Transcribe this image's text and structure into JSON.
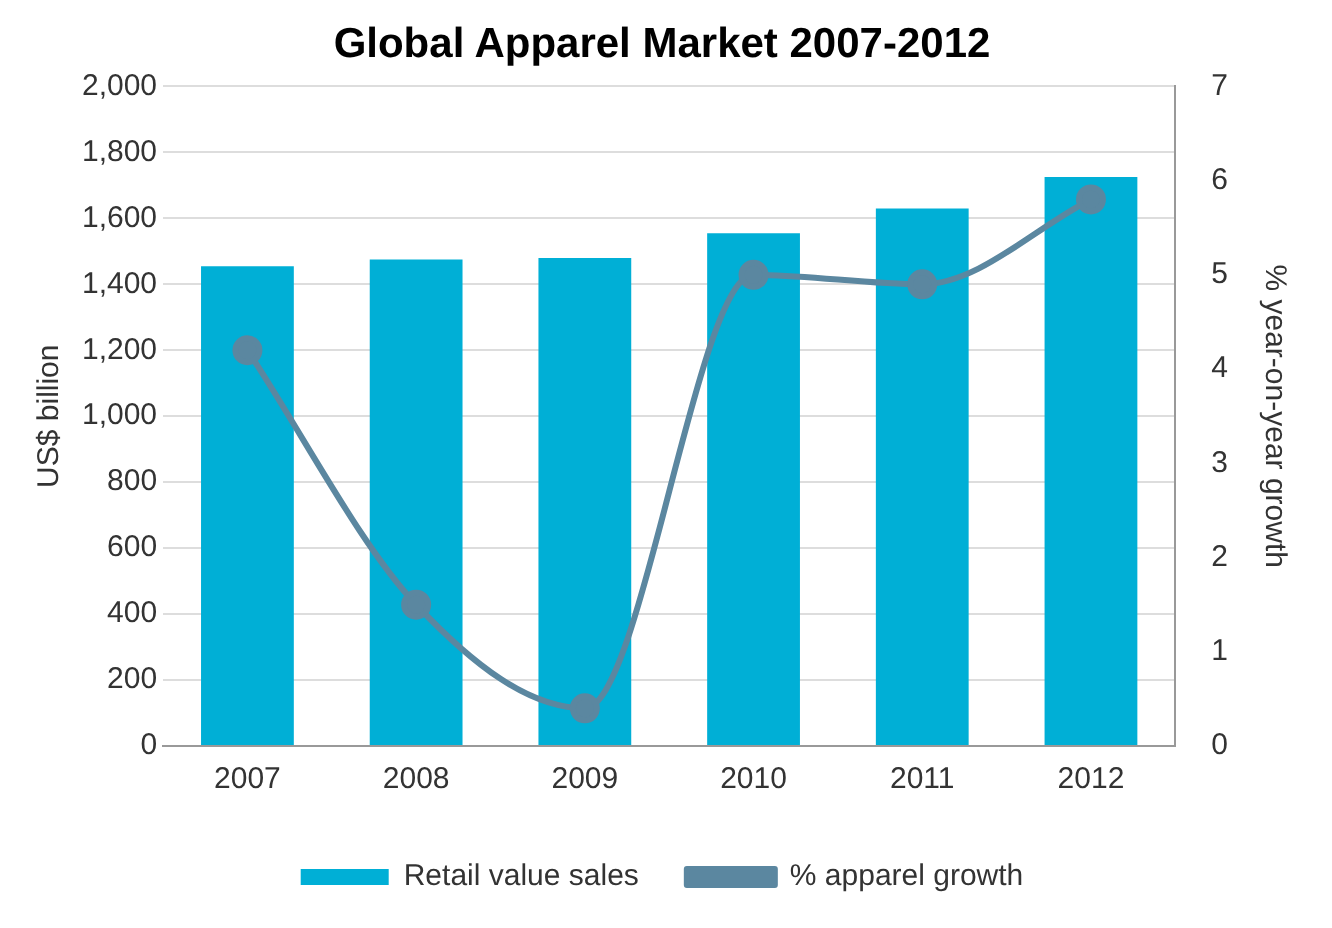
{
  "chart_data": {
    "type": "bar",
    "title": "Global Apparel Market 2007-2012",
    "ylabel": "US$ billion",
    "y2label": "% year-on-year growth",
    "categories": [
      "2007",
      "2008",
      "2009",
      "2010",
      "2011",
      "2012"
    ],
    "series": [
      {
        "name": "Retail value sales",
        "color": "#00afd6",
        "values": [
          1455,
          1475,
          1480,
          1555,
          1630,
          1725
        ]
      },
      {
        "name": "% apparel growth",
        "type": "line",
        "axis": "y2",
        "color": "#5b87a0",
        "values": [
          4.2,
          1.5,
          0.4,
          5.0,
          4.9,
          5.8
        ]
      }
    ],
    "ylim": [
      0,
      2000
    ],
    "yticks": [
      0,
      {
        "value": 200,
        "label": "200"
      },
      {
        "value": 400,
        "label": "400"
      },
      {
        "value": 600,
        "label": "600"
      },
      {
        "value": 800,
        "label": "800"
      },
      {
        "value": 1000,
        "label": "1,000"
      },
      {
        "value": 1200,
        "label": "1,200"
      },
      {
        "value": 1400,
        "label": "1,400"
      },
      {
        "value": 1600,
        "label": "1,600"
      },
      {
        "value": 1800,
        "label": "1,800"
      },
      {
        "value": 2000,
        "label": "2,000"
      }
    ],
    "y2lim": [
      0,
      7
    ],
    "y2ticks": [
      0,
      1,
      2,
      3,
      4,
      5,
      6,
      7
    ],
    "grid": "y",
    "legend": "bottom",
    "marker": "circle",
    "line_style": "solid"
  }
}
